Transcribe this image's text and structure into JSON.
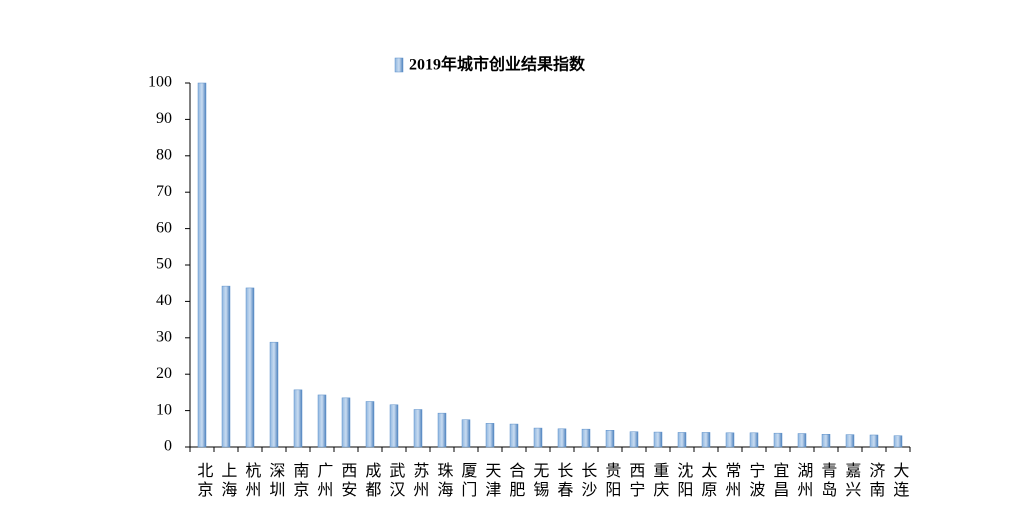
{
  "chart_data": {
    "type": "bar",
    "categories": [
      "北京",
      "上海",
      "杭州",
      "深圳",
      "南京",
      "广州",
      "西安",
      "成都",
      "武汉",
      "苏州",
      "珠海",
      "厦门",
      "天津",
      "合肥",
      "无锡",
      "长春",
      "长沙",
      "贵阳",
      "西宁",
      "重庆",
      "沈阳",
      "太原",
      "常州",
      "宁波",
      "宜昌",
      "湖州",
      "青岛",
      "嘉兴",
      "济南",
      "大连"
    ],
    "series": [
      {
        "name": "2019年城市创业结果指数",
        "color": "#5b8fc9",
        "values": [
          100,
          44.2,
          43.7,
          28.8,
          15.7,
          14.3,
          13.5,
          12.5,
          11.6,
          10.3,
          9.3,
          7.5,
          6.5,
          6.3,
          5.2,
          5.0,
          4.9,
          4.6,
          4.2,
          4.1,
          4.0,
          4.0,
          3.9,
          3.9,
          3.8,
          3.7,
          3.5,
          3.4,
          3.3,
          3.1
        ]
      }
    ],
    "ylim": [
      0,
      100
    ],
    "yticks": [
      0,
      10,
      20,
      30,
      40,
      50,
      60,
      70,
      80,
      90,
      100
    ],
    "legend": "top"
  }
}
